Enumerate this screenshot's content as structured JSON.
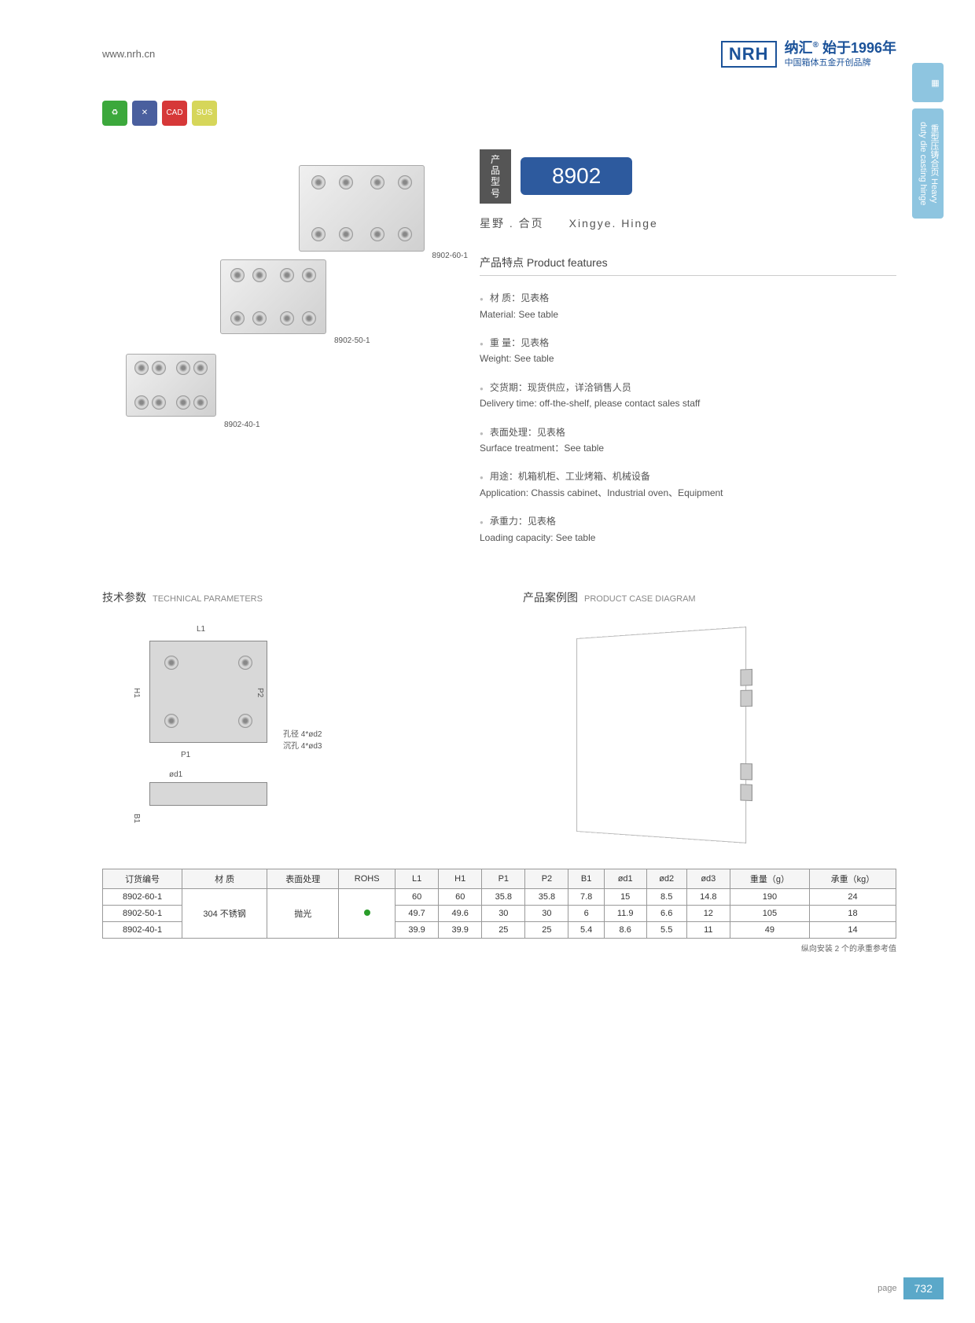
{
  "header": {
    "url": "www.nrh.cn",
    "logo": "NRH",
    "brand_cn": "纳汇",
    "brand_year": "始于1996年",
    "brand_sub": "中国箱体五金开创品牌"
  },
  "side": {
    "tab1": "",
    "tab2": "重型压铸合页 Heavy duty die casting hinge"
  },
  "model": {
    "label_cn": "产品型号",
    "number": "8902",
    "subtitle_cn": "星野 . 合页",
    "subtitle_en": "Xingye. Hinge"
  },
  "hinges": {
    "h60": "8902-60-1",
    "h50": "8902-50-1",
    "h40": "8902-40-1"
  },
  "features": {
    "title": "产品特点 Product features",
    "items": [
      {
        "cn": "材 质：见表格",
        "en": "Material: See table"
      },
      {
        "cn": "重 量：见表格",
        "en": "Weight: See table"
      },
      {
        "cn": "交货期：现货供应，详洽销售人员",
        "en": "Delivery time: off-the-shelf, please contact sales staff"
      },
      {
        "cn": "表面处理：见表格",
        "en": "Surface treatment：See table"
      },
      {
        "cn": "用途：机箱机柜、工业烤箱、机械设备",
        "en": "Application: Chassis cabinet、Industrial oven、Equipment"
      },
      {
        "cn": "承重力：见表格",
        "en": "Loading capacity: See table"
      }
    ]
  },
  "tech": {
    "title_cn": "技术参数",
    "title_en": "TECHNICAL PARAMETERS",
    "labels": {
      "L1": "L1",
      "H1": "H1",
      "P1": "P1",
      "P2": "P2",
      "B1": "B1",
      "od1": "ød1",
      "hole_note": "孔径 4*ød2\n沉孔 4*ød3"
    }
  },
  "case": {
    "title_cn": "产品案例图",
    "title_en": "PRODUCT CASE DIAGRAM"
  },
  "table": {
    "headers": [
      "订货编号",
      "材 质",
      "表面处理",
      "ROHS",
      "L1",
      "H1",
      "P1",
      "P2",
      "B1",
      "ød1",
      "ød2",
      "ød3",
      "重量（g）",
      "承重（kg）"
    ],
    "material": "304 不锈钢",
    "surface": "抛光",
    "rows": [
      [
        "8902-60-1",
        "60",
        "60",
        "35.8",
        "35.8",
        "7.8",
        "15",
        "8.5",
        "14.8",
        "190",
        "24"
      ],
      [
        "8902-50-1",
        "49.7",
        "49.6",
        "30",
        "30",
        "6",
        "11.9",
        "6.6",
        "12",
        "105",
        "18"
      ],
      [
        "8902-40-1",
        "39.9",
        "39.9",
        "25",
        "25",
        "5.4",
        "8.6",
        "5.5",
        "11",
        "49",
        "14"
      ]
    ],
    "note": "纵向安装 2 个的承重参考值"
  },
  "footer": {
    "page_label": "page",
    "page_num": "732"
  }
}
